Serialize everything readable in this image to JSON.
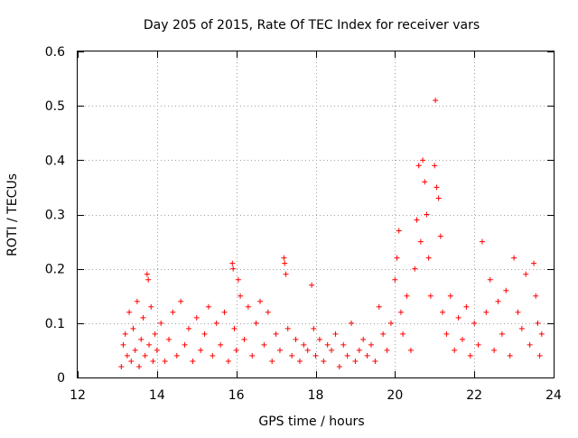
{
  "chart_data": {
    "type": "scatter",
    "title": "Day 205 of 2015, Rate Of TEC Index for receiver vars",
    "xlabel": "GPS time / hours",
    "ylabel": "ROTI / TECUs",
    "xlim": [
      12,
      24
    ],
    "ylim": [
      0,
      0.6
    ],
    "xticks": [
      "12",
      "14",
      "16",
      "18",
      "20",
      "22",
      "24"
    ],
    "yticks": [
      "0",
      "0.1",
      "0.2",
      "0.3",
      "0.4",
      "0.5",
      "0.6"
    ],
    "grid": true,
    "marker": "plus",
    "color": "#ff0000",
    "series": [
      {
        "points": [
          [
            13.1,
            0.02
          ],
          [
            13.15,
            0.06
          ],
          [
            13.2,
            0.08
          ],
          [
            13.25,
            0.04
          ],
          [
            13.3,
            0.12
          ],
          [
            13.35,
            0.03
          ],
          [
            13.4,
            0.09
          ],
          [
            13.45,
            0.05
          ],
          [
            13.5,
            0.14
          ],
          [
            13.55,
            0.02
          ],
          [
            13.6,
            0.07
          ],
          [
            13.65,
            0.11
          ],
          [
            13.7,
            0.04
          ],
          [
            13.75,
            0.19
          ],
          [
            13.78,
            0.18
          ],
          [
            13.8,
            0.06
          ],
          [
            13.85,
            0.13
          ],
          [
            13.9,
            0.03
          ],
          [
            13.95,
            0.08
          ],
          [
            14.0,
            0.05
          ],
          [
            14.1,
            0.1
          ],
          [
            14.2,
            0.03
          ],
          [
            14.3,
            0.07
          ],
          [
            14.4,
            0.12
          ],
          [
            14.5,
            0.04
          ],
          [
            14.6,
            0.14
          ],
          [
            14.7,
            0.06
          ],
          [
            14.8,
            0.09
          ],
          [
            14.9,
            0.03
          ],
          [
            15.0,
            0.11
          ],
          [
            15.1,
            0.05
          ],
          [
            15.2,
            0.08
          ],
          [
            15.3,
            0.13
          ],
          [
            15.4,
            0.04
          ],
          [
            15.5,
            0.1
          ],
          [
            15.6,
            0.06
          ],
          [
            15.7,
            0.12
          ],
          [
            15.8,
            0.03
          ],
          [
            15.9,
            0.21
          ],
          [
            15.92,
            0.2
          ],
          [
            15.95,
            0.09
          ],
          [
            16.0,
            0.05
          ],
          [
            16.05,
            0.18
          ],
          [
            16.1,
            0.15
          ],
          [
            16.2,
            0.07
          ],
          [
            16.3,
            0.13
          ],
          [
            16.4,
            0.04
          ],
          [
            16.5,
            0.1
          ],
          [
            16.6,
            0.14
          ],
          [
            16.7,
            0.06
          ],
          [
            16.8,
            0.12
          ],
          [
            16.9,
            0.03
          ],
          [
            17.0,
            0.08
          ],
          [
            17.1,
            0.05
          ],
          [
            17.2,
            0.22
          ],
          [
            17.22,
            0.21
          ],
          [
            17.25,
            0.19
          ],
          [
            17.3,
            0.09
          ],
          [
            17.4,
            0.04
          ],
          [
            17.5,
            0.07
          ],
          [
            17.6,
            0.03
          ],
          [
            17.7,
            0.06
          ],
          [
            17.8,
            0.05
          ],
          [
            17.9,
            0.17
          ],
          [
            17.95,
            0.09
          ],
          [
            18.0,
            0.04
          ],
          [
            18.1,
            0.07
          ],
          [
            18.2,
            0.03
          ],
          [
            18.3,
            0.06
          ],
          [
            18.4,
            0.05
          ],
          [
            18.5,
            0.08
          ],
          [
            18.6,
            0.02
          ],
          [
            18.7,
            0.06
          ],
          [
            18.8,
            0.04
          ],
          [
            18.9,
            0.1
          ],
          [
            19.0,
            0.03
          ],
          [
            19.1,
            0.05
          ],
          [
            19.2,
            0.07
          ],
          [
            19.3,
            0.04
          ],
          [
            19.4,
            0.06
          ],
          [
            19.5,
            0.03
          ],
          [
            19.6,
            0.13
          ],
          [
            19.7,
            0.08
          ],
          [
            19.8,
            0.05
          ],
          [
            19.9,
            0.1
          ],
          [
            20.0,
            0.18
          ],
          [
            20.05,
            0.22
          ],
          [
            20.1,
            0.27
          ],
          [
            20.15,
            0.12
          ],
          [
            20.2,
            0.08
          ],
          [
            20.3,
            0.15
          ],
          [
            20.4,
            0.05
          ],
          [
            20.5,
            0.2
          ],
          [
            20.55,
            0.29
          ],
          [
            20.6,
            0.39
          ],
          [
            20.65,
            0.25
          ],
          [
            20.7,
            0.4
          ],
          [
            20.75,
            0.36
          ],
          [
            20.8,
            0.3
          ],
          [
            20.85,
            0.22
          ],
          [
            20.9,
            0.15
          ],
          [
            21.0,
            0.39
          ],
          [
            21.02,
            0.51
          ],
          [
            21.05,
            0.35
          ],
          [
            21.1,
            0.33
          ],
          [
            21.15,
            0.26
          ],
          [
            21.2,
            0.12
          ],
          [
            21.3,
            0.08
          ],
          [
            21.4,
            0.15
          ],
          [
            21.5,
            0.05
          ],
          [
            21.6,
            0.11
          ],
          [
            21.7,
            0.07
          ],
          [
            21.8,
            0.13
          ],
          [
            21.9,
            0.04
          ],
          [
            22.0,
            0.1
          ],
          [
            22.1,
            0.06
          ],
          [
            22.2,
            0.25
          ],
          [
            22.3,
            0.12
          ],
          [
            22.4,
            0.18
          ],
          [
            22.5,
            0.05
          ],
          [
            22.6,
            0.14
          ],
          [
            22.7,
            0.08
          ],
          [
            22.8,
            0.16
          ],
          [
            22.9,
            0.04
          ],
          [
            23.0,
            0.22
          ],
          [
            23.1,
            0.12
          ],
          [
            23.2,
            0.09
          ],
          [
            23.3,
            0.19
          ],
          [
            23.4,
            0.06
          ],
          [
            23.5,
            0.21
          ],
          [
            23.55,
            0.15
          ],
          [
            23.6,
            0.1
          ],
          [
            23.65,
            0.04
          ],
          [
            23.7,
            0.08
          ]
        ]
      }
    ]
  }
}
